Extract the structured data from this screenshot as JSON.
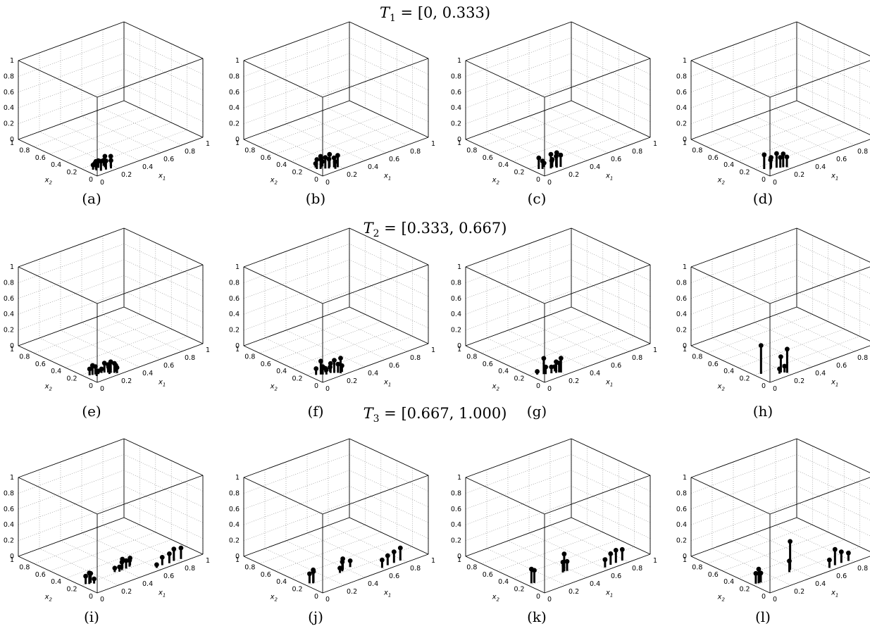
{
  "row_titles": [
    {
      "T": "T",
      "sub": "1",
      "rest": " = [0, 0.333)"
    },
    {
      "T": "T",
      "sub": "2",
      "rest": " = [0.333, 0.667)"
    },
    {
      "T": "T",
      "sub": "3",
      "rest": " = [0.667, 1.000)"
    }
  ],
  "chart_data": [
    {
      "type": "scatter",
      "caption": "(a)",
      "xlabel": "x1",
      "ylabel": "x2",
      "xlim": [
        0,
        1
      ],
      "ylim": [
        0,
        1
      ],
      "zlim": [
        0,
        1
      ],
      "grid": true,
      "points": [
        [
          0.05,
          0.12,
          0.06
        ],
        [
          0.07,
          0.11,
          0.1
        ],
        [
          0.06,
          0.09,
          0.08
        ],
        [
          0.08,
          0.06,
          0.12
        ],
        [
          0.1,
          0.12,
          0.09
        ],
        [
          0.12,
          0.05,
          0.11
        ],
        [
          0.14,
          0.09,
          0.14
        ],
        [
          0.16,
          0.04,
          0.1
        ],
        [
          0.18,
          0.07,
          0.13
        ],
        [
          0.15,
          0.12,
          0.07
        ],
        [
          0.09,
          0.15,
          0.05
        ]
      ]
    },
    {
      "type": "scatter",
      "caption": "(b)",
      "xlabel": "x1",
      "ylabel": "x2",
      "xlim": [
        0,
        1
      ],
      "ylim": [
        0,
        1
      ],
      "zlim": [
        0,
        1
      ],
      "grid": true,
      "points": [
        [
          0.05,
          0.14,
          0.12
        ],
        [
          0.07,
          0.12,
          0.16
        ],
        [
          0.09,
          0.14,
          0.1
        ],
        [
          0.1,
          0.1,
          0.14
        ],
        [
          0.12,
          0.08,
          0.12
        ],
        [
          0.14,
          0.1,
          0.16
        ],
        [
          0.16,
          0.07,
          0.12
        ],
        [
          0.18,
          0.05,
          0.15
        ],
        [
          0.06,
          0.17,
          0.05
        ],
        [
          0.11,
          0.15,
          0.06
        ],
        [
          0.15,
          0.04,
          0.09
        ]
      ]
    },
    {
      "type": "scatter",
      "caption": "(c)",
      "xlabel": "x1",
      "ylabel": "x2",
      "xlim": [
        0,
        1
      ],
      "ylim": [
        0,
        1
      ],
      "zlim": [
        0,
        1
      ],
      "grid": true,
      "points": [
        [
          0.05,
          0.14,
          0.14
        ],
        [
          0.07,
          0.12,
          0.1
        ],
        [
          0.12,
          0.08,
          0.18
        ],
        [
          0.14,
          0.09,
          0.1
        ],
        [
          0.16,
          0.06,
          0.19
        ],
        [
          0.17,
          0.08,
          0.13
        ],
        [
          0.19,
          0.05,
          0.15
        ],
        [
          0.1,
          0.14,
          0.05
        ],
        [
          0.15,
          0.11,
          0.07
        ]
      ]
    },
    {
      "type": "scatter",
      "caption": "(d)",
      "xlabel": "x1",
      "ylabel": "x2",
      "xlim": [
        0,
        1
      ],
      "ylim": [
        0,
        1
      ],
      "zlim": [
        0,
        1
      ],
      "grid": true,
      "points": [
        [
          0.05,
          0.14,
          0.18
        ],
        [
          0.1,
          0.12,
          0.13
        ],
        [
          0.13,
          0.09,
          0.18
        ],
        [
          0.15,
          0.07,
          0.13
        ],
        [
          0.17,
          0.06,
          0.17
        ],
        [
          0.19,
          0.04,
          0.13
        ],
        [
          0.08,
          0.1,
          0.12
        ]
      ]
    },
    {
      "type": "scatter",
      "caption": "(e)",
      "xlabel": "x1",
      "ylabel": "x2",
      "xlim": [
        0,
        1
      ],
      "ylim": [
        0,
        1
      ],
      "zlim": [
        0,
        1
      ],
      "grid": true,
      "points": [
        [
          0.04,
          0.15,
          0.08
        ],
        [
          0.06,
          0.14,
          0.12
        ],
        [
          0.08,
          0.13,
          0.1
        ],
        [
          0.07,
          0.1,
          0.06
        ],
        [
          0.1,
          0.12,
          0.04
        ],
        [
          0.15,
          0.11,
          0.12
        ],
        [
          0.17,
          0.09,
          0.1
        ],
        [
          0.18,
          0.07,
          0.14
        ],
        [
          0.2,
          0.05,
          0.12
        ],
        [
          0.22,
          0.06,
          0.08
        ],
        [
          0.19,
          0.11,
          0.05
        ],
        [
          0.21,
          0.03,
          0.07
        ],
        [
          0.16,
          0.06,
          0.06
        ],
        [
          0.13,
          0.12,
          0.05
        ]
      ]
    },
    {
      "type": "scatter",
      "caption": "(f)",
      "xlabel": "x1",
      "ylabel": "x2",
      "xlim": [
        0,
        1
      ],
      "ylim": [
        0,
        1
      ],
      "zlim": [
        0,
        1
      ],
      "grid": true,
      "points": [
        [
          0.05,
          0.15,
          0.08
        ],
        [
          0.08,
          0.13,
          0.17
        ],
        [
          0.09,
          0.12,
          0.1
        ],
        [
          0.11,
          0.1,
          0.06
        ],
        [
          0.15,
          0.1,
          0.12
        ],
        [
          0.17,
          0.08,
          0.16
        ],
        [
          0.19,
          0.06,
          0.11
        ],
        [
          0.2,
          0.04,
          0.19
        ],
        [
          0.22,
          0.05,
          0.08
        ],
        [
          0.16,
          0.12,
          0.06
        ],
        [
          0.13,
          0.14,
          0.05
        ]
      ]
    },
    {
      "type": "scatter",
      "caption": "(g)",
      "xlabel": "x1",
      "ylabel": "x2",
      "xlim": [
        0,
        1
      ],
      "ylim": [
        0,
        1
      ],
      "zlim": [
        0,
        1
      ],
      "grid": true,
      "points": [
        [
          0.05,
          0.16,
          0.04
        ],
        [
          0.09,
          0.13,
          0.2
        ],
        [
          0.1,
          0.12,
          0.09
        ],
        [
          0.14,
          0.1,
          0.08
        ],
        [
          0.17,
          0.08,
          0.14
        ],
        [
          0.19,
          0.07,
          0.12
        ],
        [
          0.2,
          0.06,
          0.18
        ],
        [
          0.18,
          0.11,
          0.06
        ]
      ]
    },
    {
      "type": "scatter",
      "caption": "(h)",
      "xlabel": "x1",
      "ylabel": "x2",
      "xlim": [
        0,
        1
      ],
      "ylim": [
        0,
        1
      ],
      "zlim": [
        0,
        1
      ],
      "grid": true,
      "points": [
        [
          0.05,
          0.18,
          0.36
        ],
        [
          0.15,
          0.08,
          0.06
        ],
        [
          0.17,
          0.09,
          0.2
        ],
        [
          0.19,
          0.07,
          0.08
        ],
        [
          0.2,
          0.05,
          0.3
        ]
      ]
    },
    {
      "type": "scatter",
      "caption": "(i)",
      "xlabel": "x1",
      "ylabel": "x2",
      "xlim": [
        0,
        1
      ],
      "ylim": [
        0,
        1
      ],
      "zlim": [
        0,
        1
      ],
      "grid": true,
      "points": [
        [
          0.04,
          0.2,
          0.1
        ],
        [
          0.06,
          0.18,
          0.14
        ],
        [
          0.08,
          0.19,
          0.12
        ],
        [
          0.09,
          0.16,
          0.06
        ],
        [
          0.33,
          0.22,
          0.05
        ],
        [
          0.36,
          0.2,
          0.06
        ],
        [
          0.39,
          0.21,
          0.1
        ],
        [
          0.41,
          0.23,
          0.12
        ],
        [
          0.43,
          0.21,
          0.1
        ],
        [
          0.47,
          0.22,
          0.08
        ],
        [
          0.49,
          0.24,
          0.09
        ],
        [
          0.6,
          0.05,
          0.04
        ],
        [
          0.66,
          0.06,
          0.1
        ],
        [
          0.72,
          0.05,
          0.12
        ],
        [
          0.77,
          0.06,
          0.15
        ],
        [
          0.83,
          0.05,
          0.14
        ]
      ]
    },
    {
      "type": "scatter",
      "caption": "(j)",
      "xlabel": "x1",
      "ylabel": "x2",
      "xlim": [
        0,
        1
      ],
      "ylim": [
        0,
        1
      ],
      "zlim": [
        0,
        1
      ],
      "grid": true,
      "points": [
        [
          0.04,
          0.22,
          0.12
        ],
        [
          0.06,
          0.2,
          0.17
        ],
        [
          0.07,
          0.21,
          0.14
        ],
        [
          0.32,
          0.21,
          0.06
        ],
        [
          0.35,
          0.22,
          0.12
        ],
        [
          0.37,
          0.24,
          0.14
        ],
        [
          0.44,
          0.24,
          0.08
        ],
        [
          0.6,
          0.05,
          0.1
        ],
        [
          0.66,
          0.06,
          0.12
        ],
        [
          0.72,
          0.06,
          0.14
        ],
        [
          0.78,
          0.06,
          0.16
        ]
      ]
    },
    {
      "type": "scatter",
      "caption": "(k)",
      "xlabel": "x1",
      "ylabel": "x2",
      "xlim": [
        0,
        1
      ],
      "ylim": [
        0,
        1
      ],
      "zlim": [
        0,
        1
      ],
      "grid": true,
      "points": [
        [
          0.04,
          0.22,
          0.18
        ],
        [
          0.06,
          0.21,
          0.16
        ],
        [
          0.33,
          0.21,
          0.13
        ],
        [
          0.35,
          0.22,
          0.22
        ],
        [
          0.37,
          0.21,
          0.12
        ],
        [
          0.61,
          0.05,
          0.1
        ],
        [
          0.67,
          0.06,
          0.14
        ],
        [
          0.72,
          0.06,
          0.16
        ],
        [
          0.78,
          0.06,
          0.14
        ]
      ]
    },
    {
      "type": "scatter",
      "caption": "(l)",
      "xlabel": "x1",
      "ylabel": "x2",
      "xlim": [
        0,
        1
      ],
      "ylim": [
        0,
        1
      ],
      "zlim": [
        0,
        1
      ],
      "grid": true,
      "points": [
        [
          0.03,
          0.22,
          0.13
        ],
        [
          0.05,
          0.21,
          0.18
        ],
        [
          0.07,
          0.21,
          0.12
        ],
        [
          0.34,
          0.21,
          0.14
        ],
        [
          0.37,
          0.24,
          0.36
        ],
        [
          0.6,
          0.05,
          0.1
        ],
        [
          0.66,
          0.06,
          0.2
        ],
        [
          0.72,
          0.06,
          0.14
        ],
        [
          0.78,
          0.05,
          0.1
        ]
      ]
    }
  ]
}
